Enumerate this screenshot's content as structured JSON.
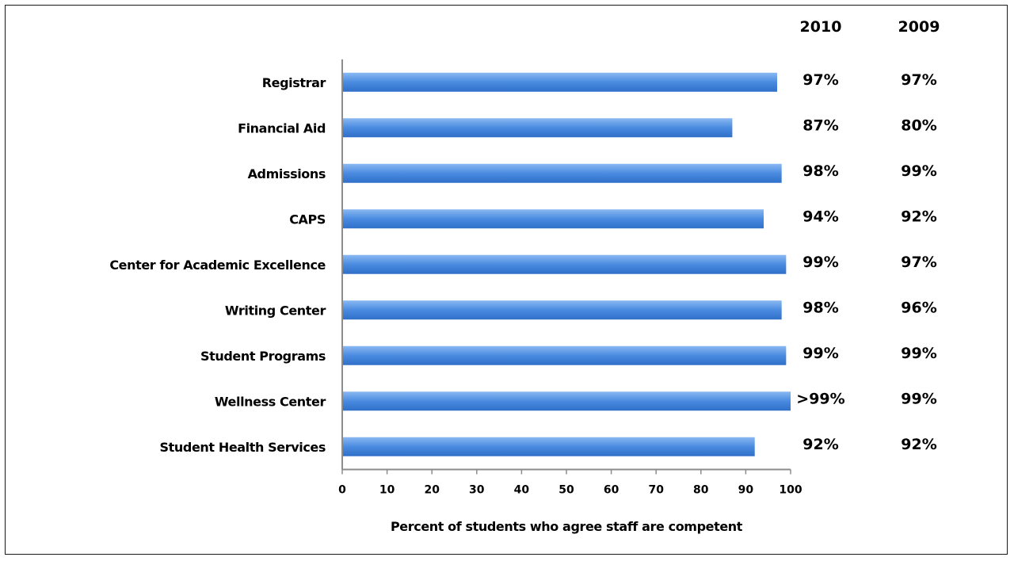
{
  "chart_data": {
    "type": "bar",
    "orientation": "horizontal",
    "categories": [
      "Registrar",
      "Financial Aid",
      "Admissions",
      "CAPS",
      "Center for Academic Excellence",
      "Writing Center",
      "Student Programs",
      "Wellness Center",
      "Student Health Services"
    ],
    "values": [
      97,
      87,
      98,
      94,
      99,
      98,
      99,
      100,
      92
    ],
    "xlabel": "Percent of students who agree staff are competent",
    "xlim": [
      0,
      100
    ],
    "xticks": [
      0,
      10,
      20,
      30,
      40,
      50,
      60,
      70,
      80,
      90,
      100
    ],
    "bar_color": "#4a8be0",
    "grid": false,
    "table_columns": [
      {
        "header": "2010",
        "values": [
          "97%",
          "87%",
          "98%",
          "94%",
          "99%",
          "98%",
          "99%",
          ">99%",
          "92%"
        ]
      },
      {
        "header": "2009",
        "values": [
          "97%",
          "80%",
          "99%",
          "92%",
          "97%",
          "96%",
          "99%",
          "99%",
          "92%"
        ]
      }
    ]
  }
}
